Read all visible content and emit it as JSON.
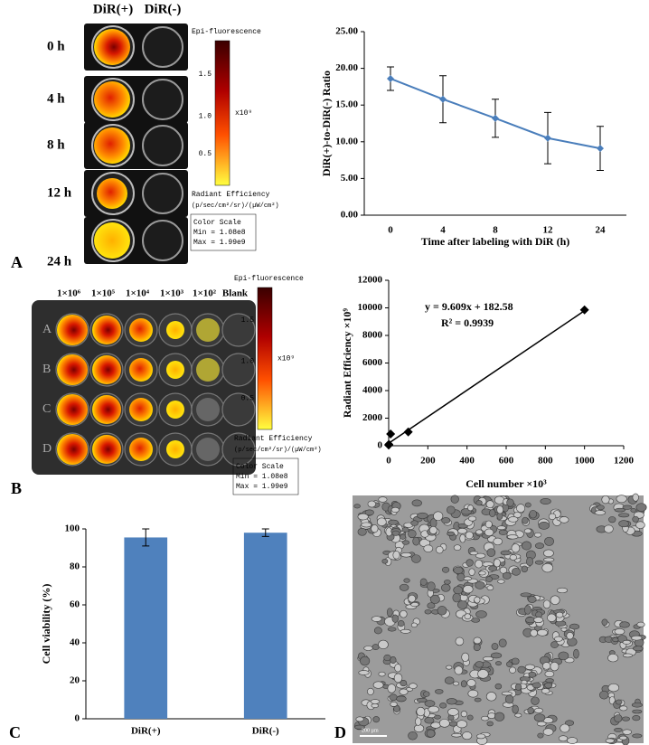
{
  "chart_data": [
    {
      "type": "line",
      "categories": [
        "0",
        "4",
        "8",
        "12",
        "24"
      ],
      "values": [
        18.6,
        15.8,
        13.2,
        10.5,
        9.1
      ],
      "errors": [
        1.6,
        3.2,
        2.6,
        3.5,
        3.0
      ],
      "color": "#4a7ebb",
      "ylim": [
        0,
        25
      ],
      "yticks": [
        {
          "value": 0,
          "label": "0.00"
        },
        {
          "value": 5,
          "label": "5.00"
        },
        {
          "value": 10,
          "label": "10.00"
        },
        {
          "value": 15,
          "label": "15.00"
        },
        {
          "value": 20,
          "label": "20.00"
        },
        {
          "value": 25,
          "label": "25.00"
        }
      ],
      "xlabel": "Time after labeling with DiR (h)",
      "ylabel": "DiR(+)-to-DiR(-) Ratio"
    },
    {
      "type": "scatter",
      "x": [
        0.1,
        1,
        10,
        100,
        1000
      ],
      "values": [
        50,
        100,
        850,
        1000,
        9850
      ],
      "color": "#000000",
      "xlim": [
        0,
        1200
      ],
      "xticks": [
        0,
        200,
        400,
        600,
        800,
        1000,
        1200
      ],
      "ylim": [
        0,
        12000
      ],
      "yticks": [
        0,
        2000,
        4000,
        6000,
        8000,
        10000,
        12000
      ],
      "xlabel": "Cell number ×10³",
      "ylabel": "Radiant Efficiency ×10⁹",
      "trendline": {
        "slope": 9.609,
        "intercept": 182.58,
        "label": "y = 9.609x + 182.58"
      },
      "r2_label": "R² = 0.9939"
    },
    {
      "type": "bar",
      "categories": [
        "DiR(+)",
        "DiR(-)"
      ],
      "values": [
        95.5,
        98
      ],
      "errors": [
        4.5,
        2
      ],
      "color": "#4f81bd",
      "ylim": [
        0,
        100
      ],
      "yticks": [
        0,
        20,
        40,
        60,
        80,
        100
      ],
      "ylabel": "Cell viability (%)"
    }
  ],
  "panel_labels": [
    "A",
    "B",
    "C",
    "D"
  ],
  "panel_a": {
    "columns": [
      "DiR(+)",
      "DiR(-)"
    ],
    "rows": [
      "0 h",
      "4 h",
      "8 h",
      "12 h",
      "24 h"
    ]
  },
  "panel_b": {
    "columns": [
      "1×10⁶",
      "1×10⁵",
      "1×10⁴",
      "1×10³",
      "1×10²",
      "Blank"
    ],
    "rows": [
      "A",
      "B",
      "C",
      "D"
    ]
  },
  "colorbar": {
    "title": "Epi-fluorescence",
    "ticks": [
      "1.5",
      "1.0",
      "0.5"
    ],
    "scale": "x10⁹",
    "label": "Radiant Efficiency",
    "units": "(p/sec/cm²/sr)/(µW/cm²)",
    "scale_title": "Color Scale",
    "min": "Min = 1.08e8",
    "max": "Max = 1.99e9"
  },
  "scale_bar": "200 µm"
}
